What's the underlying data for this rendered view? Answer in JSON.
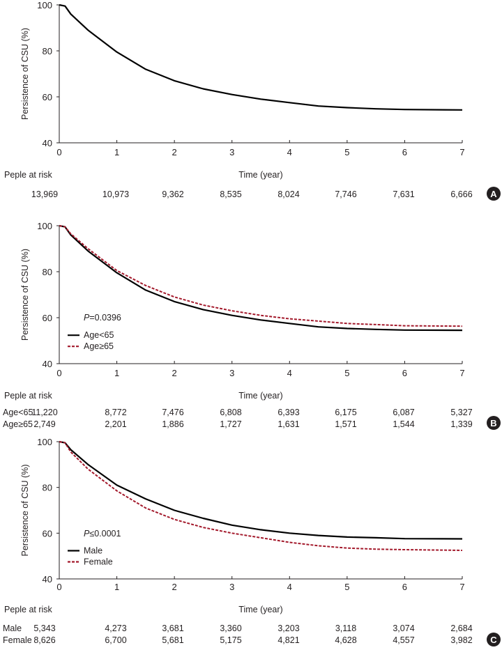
{
  "chart_data": [
    {
      "panel": "A",
      "type": "line",
      "ylabel": "Persistence of CSU (%)",
      "xlabel": "Time (year)",
      "ylim": [
        40,
        100
      ],
      "yticks": [
        40,
        60,
        80,
        100
      ],
      "xlim": [
        0,
        7
      ],
      "xticks": [
        0,
        1,
        2,
        3,
        4,
        5,
        6,
        7
      ],
      "legend_title": "",
      "x": [
        0,
        0.1,
        0.2,
        0.5,
        1,
        1.5,
        2,
        2.5,
        3,
        3.5,
        4,
        4.5,
        5,
        5.5,
        6,
        7
      ],
      "series": [
        {
          "name": "",
          "color": "#000000",
          "dashed": false,
          "values": [
            100,
            99.5,
            96,
            89,
            79.5,
            72,
            67,
            63.5,
            61,
            59,
            57.5,
            56,
            55.3,
            54.8,
            54.5,
            54.3
          ]
        }
      ],
      "risk_title": "Peple at risk",
      "risk_rows": [
        {
          "label": "",
          "values": [
            "13,969",
            "10,973",
            "9,362",
            "8,535",
            "8,024",
            "7,746",
            "7,631",
            "6,666"
          ]
        }
      ]
    },
    {
      "panel": "B",
      "type": "line",
      "ylabel": "Persistence of CSU (%)",
      "xlabel": "Time (year)",
      "ylim": [
        40,
        100
      ],
      "yticks": [
        40,
        60,
        80,
        100
      ],
      "xlim": [
        0,
        7
      ],
      "xticks": [
        0,
        1,
        2,
        3,
        4,
        5,
        6,
        7
      ],
      "legend_title": "P=0.0396",
      "legend_p": "P",
      "legend_pval": "=0.0396",
      "x": [
        0,
        0.1,
        0.2,
        0.5,
        1,
        1.5,
        2,
        2.5,
        3,
        3.5,
        4,
        4.5,
        5,
        5.5,
        6,
        7
      ],
      "series": [
        {
          "name": "Age<65",
          "color": "#000000",
          "dashed": false,
          "values": [
            100,
            99.5,
            96,
            89,
            79.5,
            72,
            67,
            63.5,
            61,
            59,
            57.5,
            56,
            55.3,
            54.9,
            54.6,
            54.5
          ]
        },
        {
          "name": "Age≥65",
          "color": "#a3192b",
          "dashed": true,
          "values": [
            100,
            99.5,
            96.5,
            90,
            80.5,
            74,
            69,
            65.5,
            63,
            61,
            59.5,
            58.5,
            57.5,
            57,
            56.5,
            56.3
          ]
        }
      ],
      "risk_title": "Peple at risk",
      "risk_rows": [
        {
          "label": "Age<65",
          "values": [
            "11,220",
            "8,772",
            "7,476",
            "6,808",
            "6,393",
            "6,175",
            "6,087",
            "5,327"
          ]
        },
        {
          "label": "Age≥65",
          "values": [
            "2,749",
            "2,201",
            "1,886",
            "1,727",
            "1,631",
            "1,571",
            "1,544",
            "1,339"
          ]
        }
      ]
    },
    {
      "panel": "C",
      "type": "line",
      "ylabel": "Persistence of CSU (%)",
      "xlabel": "Time (year)",
      "ylim": [
        40,
        100
      ],
      "yticks": [
        40,
        60,
        80,
        100
      ],
      "xlim": [
        0,
        7
      ],
      "xticks": [
        0,
        1,
        2,
        3,
        4,
        5,
        6,
        7
      ],
      "legend_title": "P≤0.0001",
      "legend_p": "P",
      "legend_pval": "≤0.0001",
      "x": [
        0,
        0.1,
        0.2,
        0.5,
        1,
        1.5,
        2,
        2.5,
        3,
        3.5,
        4,
        4.5,
        5,
        5.5,
        6,
        7
      ],
      "series": [
        {
          "name": "Male",
          "color": "#000000",
          "dashed": false,
          "values": [
            100,
            99.5,
            96.5,
            90,
            81,
            75,
            70,
            66.5,
            63.5,
            61.5,
            60,
            59,
            58.3,
            58,
            57.6,
            57.5
          ]
        },
        {
          "name": "Female",
          "color": "#a3192b",
          "dashed": true,
          "values": [
            100,
            99.5,
            95.5,
            88,
            78.5,
            71,
            66,
            62.5,
            60,
            58,
            56,
            54.5,
            53.5,
            53,
            52.8,
            52.5
          ]
        }
      ],
      "risk_title": "Peple at risk",
      "risk_rows": [
        {
          "label": "Male",
          "values": [
            "5,343",
            "4,273",
            "3,681",
            "3,360",
            "3,203",
            "3,118",
            "3,074",
            "2,684"
          ]
        },
        {
          "label": "Female",
          "values": [
            "8,626",
            "6,700",
            "5,681",
            "5,175",
            "4,821",
            "4,628",
            "4,557",
            "3,982"
          ]
        }
      ]
    }
  ]
}
